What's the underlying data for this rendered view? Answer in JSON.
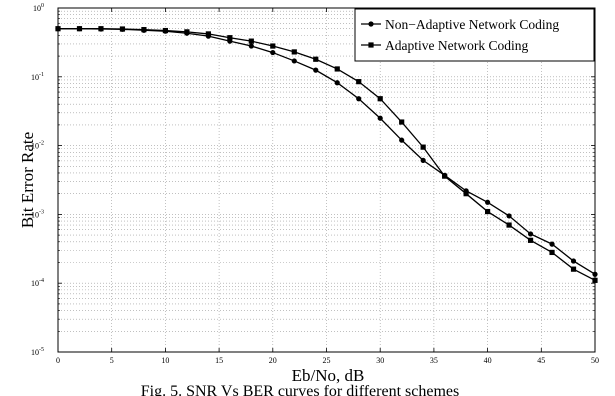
{
  "chart_data": {
    "type": "line",
    "title": "",
    "xlabel": "Eb/No, dB",
    "ylabel": "Bit Error Rate",
    "xlim": [
      0,
      50
    ],
    "ylim": [
      1e-05,
      1
    ],
    "yscale": "log",
    "grid": true,
    "legend_position": "top-right",
    "x_ticks": [
      "0",
      "5",
      "10",
      "15",
      "20",
      "25",
      "30",
      "35",
      "40",
      "45",
      "50"
    ],
    "y_ticks": [
      {
        "base": "10",
        "exp": "0"
      },
      {
        "base": "10",
        "exp": "-1"
      },
      {
        "base": "10",
        "exp": "-2"
      },
      {
        "base": "10",
        "exp": "-3"
      },
      {
        "base": "10",
        "exp": "-4"
      },
      {
        "base": "10",
        "exp": "-5"
      }
    ],
    "x": [
      0,
      2,
      4,
      6,
      8,
      10,
      12,
      14,
      16,
      18,
      20,
      22,
      24,
      26,
      28,
      30,
      32,
      34,
      36,
      38,
      40,
      42,
      44,
      46,
      48,
      50
    ],
    "series": [
      {
        "name": "Non−Adaptive Network Coding",
        "marker": "circle",
        "color": "#000000",
        "values": [
          0.5,
          0.5,
          0.495,
          0.49,
          0.475,
          0.46,
          0.43,
          0.39,
          0.33,
          0.28,
          0.225,
          0.17,
          0.125,
          0.082,
          0.048,
          0.025,
          0.012,
          0.0061,
          0.0037,
          0.0022,
          0.0015,
          0.00095,
          0.00052,
          0.00037,
          0.00021,
          0.000135
        ]
      },
      {
        "name": "Adaptive Network Coding",
        "marker": "square",
        "color": "#000000",
        "values": [
          0.5,
          0.5,
          0.5,
          0.495,
          0.485,
          0.47,
          0.45,
          0.42,
          0.37,
          0.33,
          0.28,
          0.23,
          0.18,
          0.13,
          0.085,
          0.048,
          0.022,
          0.0095,
          0.0036,
          0.002,
          0.0011,
          0.0007,
          0.00042,
          0.00028,
          0.00016,
          0.00011
        ]
      }
    ]
  },
  "caption": "Fig. 5.   SNR Vs BER curves for different schemes"
}
